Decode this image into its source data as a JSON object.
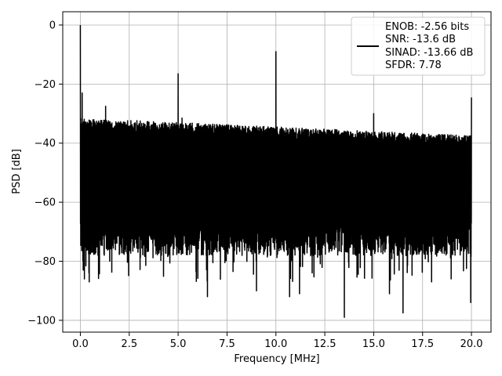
{
  "chart_data": {
    "type": "line",
    "title": "",
    "xlabel": "Frequency [MHz]",
    "ylabel": "PSD [dB]",
    "xlim": [
      -0.9,
      21.0
    ],
    "ylim": [
      -104,
      4.5
    ],
    "xticks": [
      0.0,
      2.5,
      5.0,
      7.5,
      10.0,
      12.5,
      15.0,
      17.5,
      20.0
    ],
    "xtick_labels": [
      "0.0",
      "2.5",
      "5.0",
      "7.5",
      "10.0",
      "12.5",
      "15.0",
      "17.5",
      "20.0"
    ],
    "yticks": [
      0,
      -20,
      -40,
      -60,
      -80,
      -100
    ],
    "ytick_labels": [
      "0",
      "−20",
      "−40",
      "−60",
      "−80",
      "−100"
    ],
    "grid": true,
    "legend_position": "top-right",
    "series_color": "#000000",
    "legend_entries": [
      "ENOB: -2.56 bits",
      "SNR: -13.6 dB",
      "SINAD: -13.66 dB",
      "SFDR: 7.78"
    ],
    "frequency_range": [
      0.0,
      20.0
    ],
    "noise_band": {
      "upper_start": -31.5,
      "upper_end": -37.5,
      "lower_typical": -75,
      "lower_min": -99
    },
    "peaks": [
      {
        "x": 0.0,
        "y": 0
      },
      {
        "x": 0.1,
        "y": -23
      },
      {
        "x": 1.3,
        "y": -27.5
      },
      {
        "x": 5.0,
        "y": -16.5
      },
      {
        "x": 5.2,
        "y": -31.5
      },
      {
        "x": 10.0,
        "y": -9
      },
      {
        "x": 15.0,
        "y": -30
      },
      {
        "x": 20.0,
        "y": -24.5
      }
    ],
    "dips": [
      {
        "x": 0.2,
        "y": -86
      },
      {
        "x": 0.45,
        "y": -87
      },
      {
        "x": 6.5,
        "y": -92
      },
      {
        "x": 9.0,
        "y": -90
      },
      {
        "x": 10.7,
        "y": -92
      },
      {
        "x": 11.2,
        "y": -91
      },
      {
        "x": 13.5,
        "y": -99
      },
      {
        "x": 15.8,
        "y": -91
      },
      {
        "x": 16.5,
        "y": -97.5
      },
      {
        "x": 19.95,
        "y": -94
      }
    ]
  }
}
